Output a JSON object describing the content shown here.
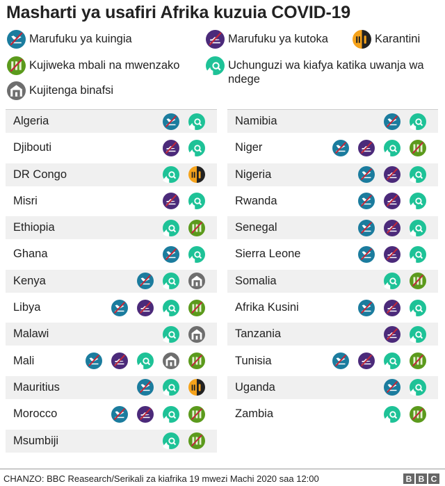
{
  "title": "Masharti ya usafiri Afrika kuzuia COVID-19",
  "colors": {
    "entry_ban": "#1b7c9e",
    "exit_ban": "#4b2a7a",
    "quarantine": "#f6a31b",
    "distancing": "#5b9a1c",
    "screening": "#1ec297",
    "isolation": "#6e6e6e",
    "slash": "#c0283a"
  },
  "legend": [
    {
      "code": "E",
      "icon": "entry-ban-icon",
      "label": "Marufuku ya kuingia"
    },
    {
      "code": "X",
      "icon": "exit-ban-icon",
      "label": "Marufuku ya kutoka"
    },
    {
      "code": "Q",
      "icon": "quarantine-icon",
      "label": "Karantini"
    },
    {
      "code": "D",
      "icon": "social-distancing-icon",
      "label": "Kujiweka mbali na mwenzako"
    },
    {
      "code": "S",
      "icon": "airport-screening-icon",
      "label": "Uchunguzi wa kiafya katika uwanja wa ndege"
    },
    {
      "code": "I",
      "icon": "self-isolation-icon",
      "label": "Kujitenga binafsi"
    }
  ],
  "columns": [
    [
      {
        "country": "Algeria",
        "measures": [
          "E",
          "S"
        ]
      },
      {
        "country": "Djibouti",
        "measures": [
          "X",
          "S"
        ]
      },
      {
        "country": "DR Congo",
        "measures": [
          "S",
          "Q"
        ]
      },
      {
        "country": "Misri",
        "measures": [
          "X",
          "S"
        ]
      },
      {
        "country": "Ethiopia",
        "measures": [
          "S",
          "D"
        ]
      },
      {
        "country": "Ghana",
        "measures": [
          "E",
          "S"
        ]
      },
      {
        "country": "Kenya",
        "measures": [
          "E",
          "S",
          "I"
        ]
      },
      {
        "country": "Libya",
        "measures": [
          "E",
          "X",
          "S",
          "D"
        ]
      },
      {
        "country": "Malawi",
        "measures": [
          "S",
          "I"
        ]
      },
      {
        "country": "Mali",
        "measures": [
          "E",
          "X",
          "S",
          "I",
          "D"
        ]
      },
      {
        "country": "Mauritius",
        "measures": [
          "E",
          "S",
          "Q"
        ]
      },
      {
        "country": "Morocco",
        "measures": [
          "E",
          "X",
          "S",
          "D"
        ]
      },
      {
        "country": "Msumbiji",
        "measures": [
          "S",
          "D"
        ]
      }
    ],
    [
      {
        "country": "Namibia",
        "measures": [
          "E",
          "S"
        ]
      },
      {
        "country": "Niger",
        "measures": [
          "E",
          "X",
          "S",
          "D"
        ]
      },
      {
        "country": "Nigeria",
        "measures": [
          "E",
          "X",
          "S"
        ]
      },
      {
        "country": "Rwanda",
        "measures": [
          "E",
          "X",
          "S"
        ]
      },
      {
        "country": "Senegal",
        "measures": [
          "E",
          "X",
          "S"
        ]
      },
      {
        "country": "Sierra Leone",
        "measures": [
          "E",
          "X",
          "S"
        ]
      },
      {
        "country": "Somalia",
        "measures": [
          "S",
          "D"
        ]
      },
      {
        "country": "Afrika Kusini",
        "measures": [
          "E",
          "X",
          "S"
        ]
      },
      {
        "country": "Tanzania",
        "measures": [
          "X",
          "S"
        ]
      },
      {
        "country": "Tunisia",
        "measures": [
          "E",
          "X",
          "S",
          "D"
        ]
      },
      {
        "country": "Uganda",
        "measures": [
          "E",
          "S"
        ]
      },
      {
        "country": "Zambia",
        "measures": [
          "S",
          "D"
        ]
      }
    ]
  ],
  "source": "CHANZO: BBC Reasearch/Serikali za kiafrika 19 mwezi Machi 2020 saa 12:00",
  "logo": [
    "B",
    "B",
    "C"
  ]
}
